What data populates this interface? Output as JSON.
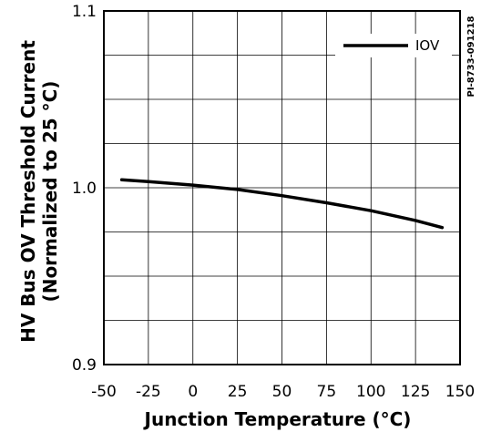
{
  "chart_data": {
    "type": "line",
    "xlabel": "Junction Temperature (°C)",
    "ylabel_line1": "HV Bus OV Threshold Current",
    "ylabel_line2": "(Normalized to 25 °C)",
    "figure_id": "PI-8733-091218",
    "xlim": [
      -50,
      150
    ],
    "ylim": [
      0.9,
      1.1
    ],
    "xticks": [
      -50,
      -25,
      0,
      25,
      50,
      75,
      100,
      125,
      150
    ],
    "yticks": [
      0.9,
      1.0,
      1.1
    ],
    "ytick_labels": [
      "0.9",
      "1.0",
      "1.1"
    ],
    "grid": true,
    "legend_position": "top-right",
    "series": [
      {
        "name": "IOV",
        "color": "#000000",
        "x": [
          -40,
          -25,
          0,
          25,
          50,
          75,
          100,
          125,
          140
        ],
        "y": [
          1.0045,
          1.0035,
          1.0015,
          0.999,
          0.9955,
          0.9915,
          0.987,
          0.9815,
          0.9775
        ]
      }
    ]
  }
}
